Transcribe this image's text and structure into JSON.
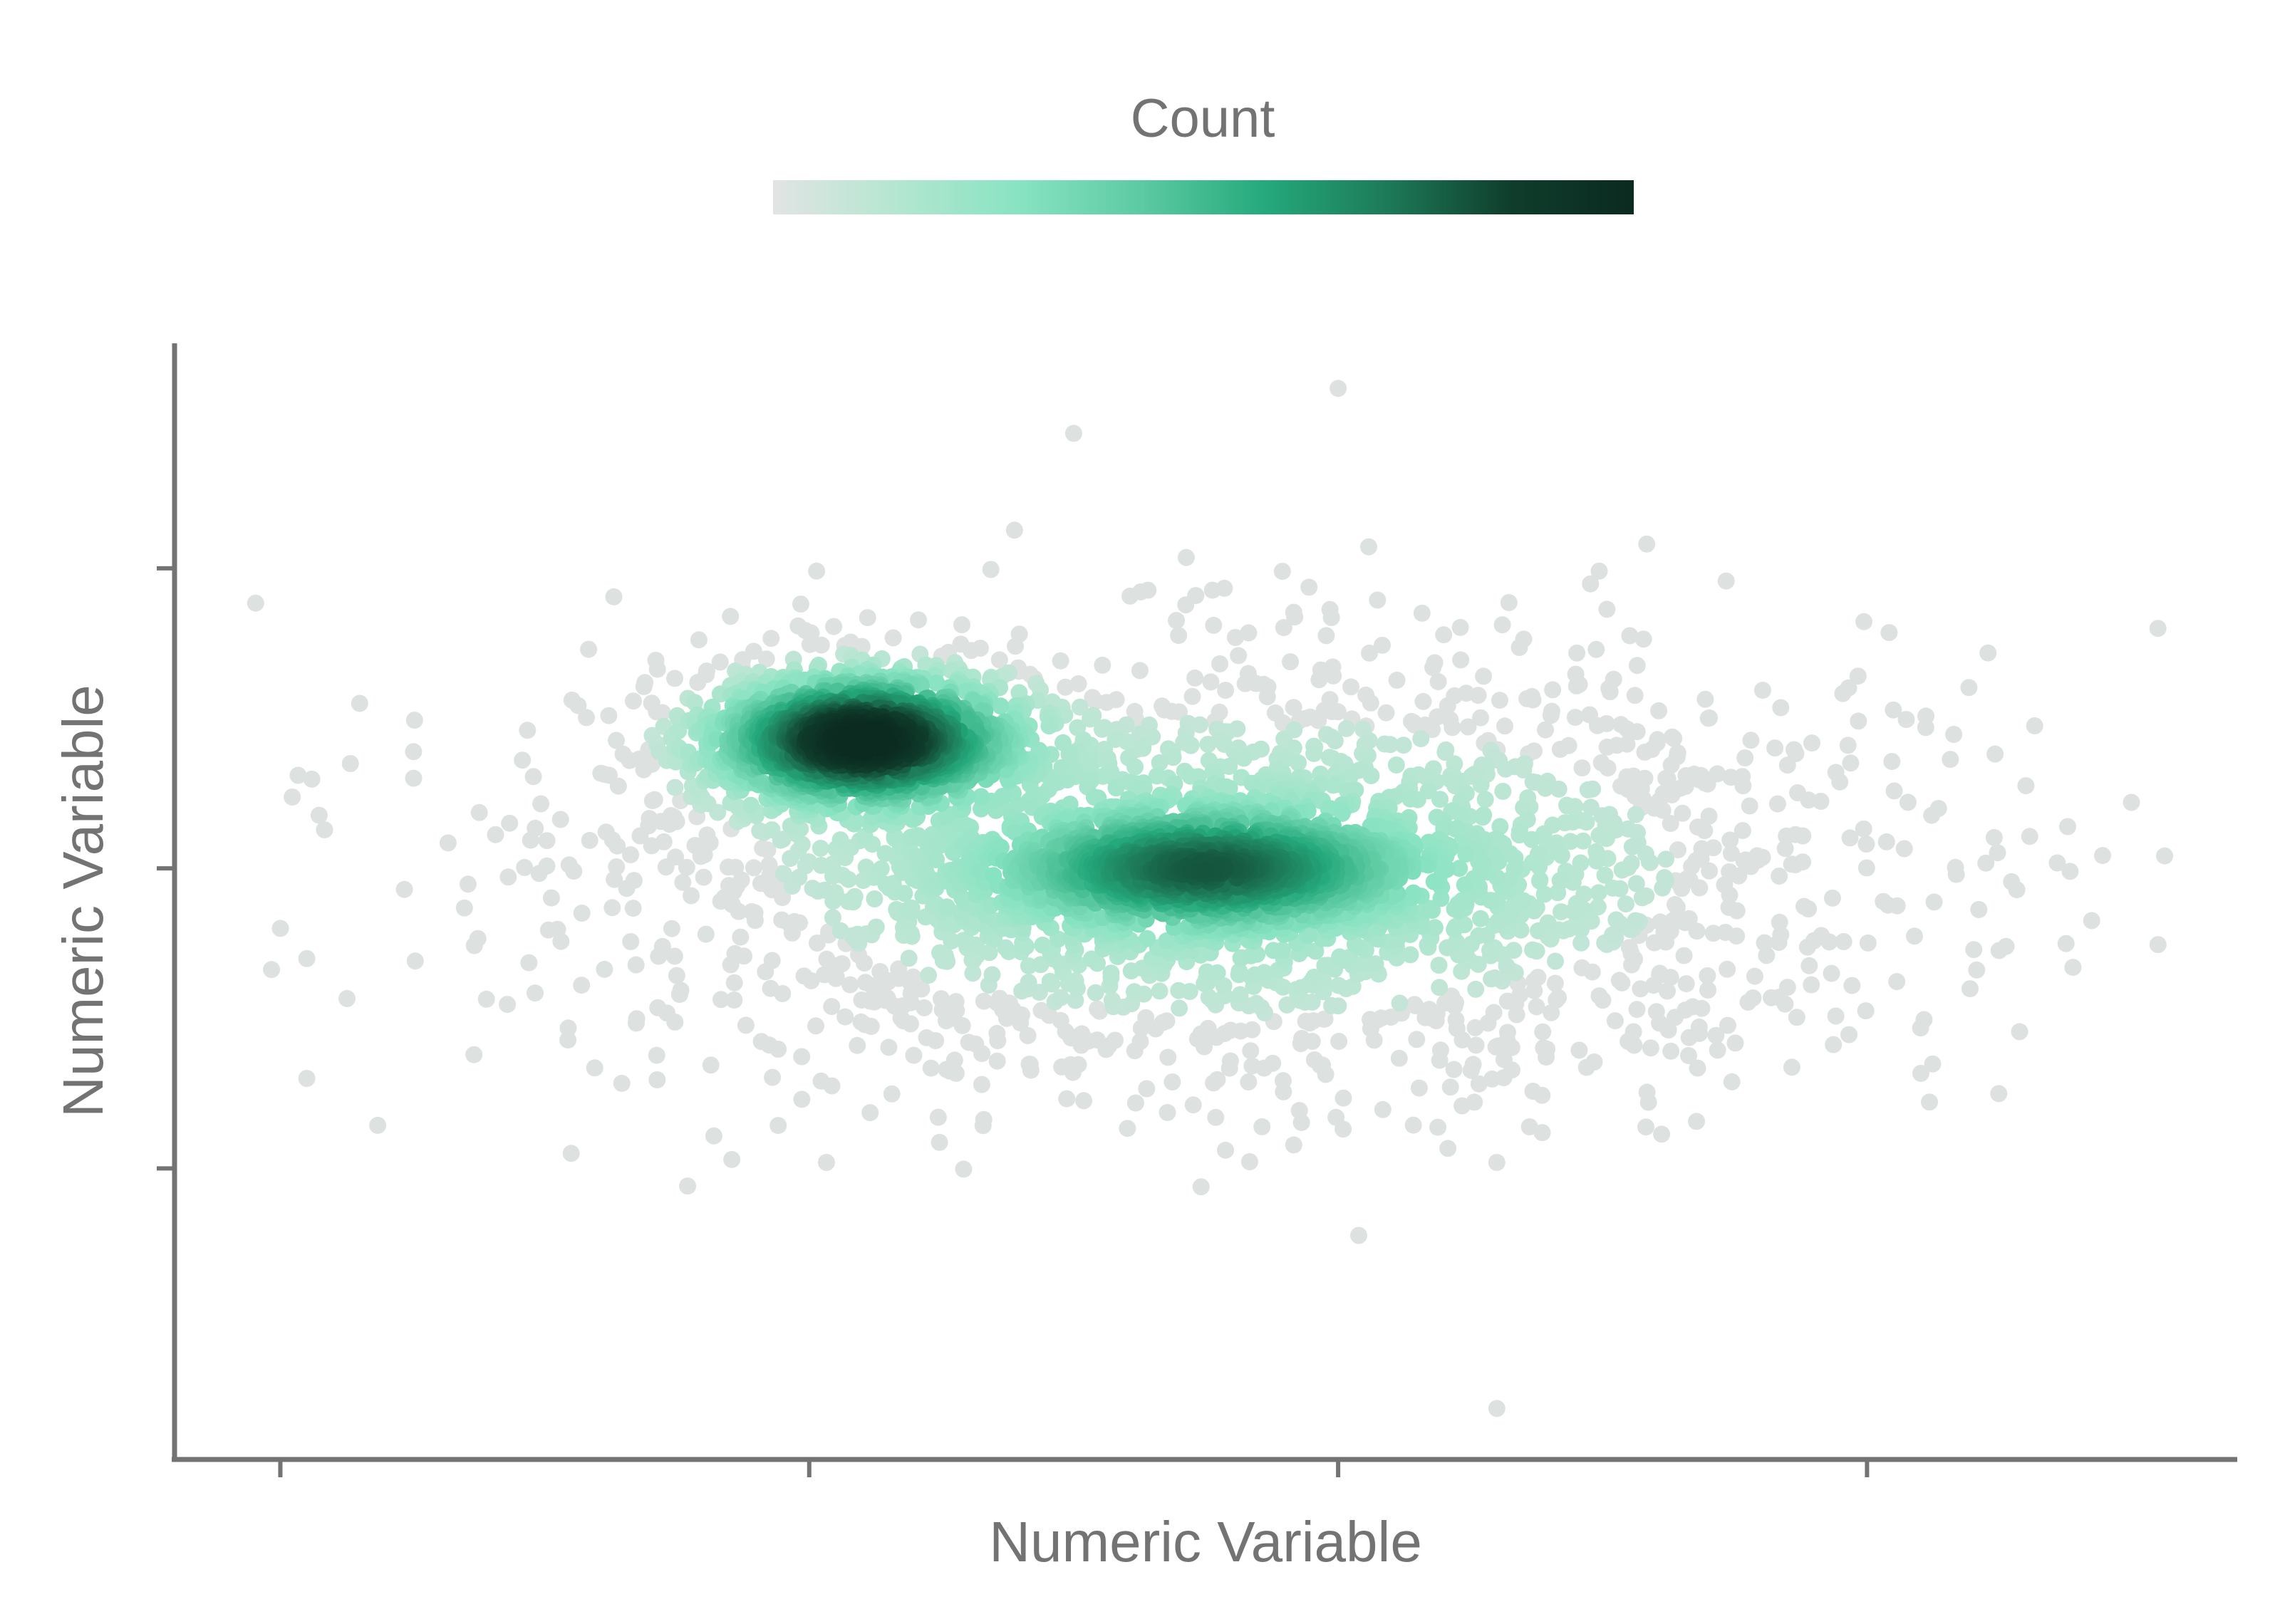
{
  "chart_data": {
    "type": "scatter",
    "title": "",
    "xlabel": "Numeric Variable",
    "ylabel": "Numeric Variable",
    "x_tick_labels": [],
    "y_tick_labels": [],
    "xlim": [
      -0.2,
      3.7
    ],
    "ylim": [
      -0.97,
      2.75
    ],
    "grid": false,
    "legend": {
      "title": "Count",
      "position": "top",
      "colorscale": [
        "#e2e4e3",
        "#b4e6d1",
        "#88e3c2",
        "#5ccaa2",
        "#25a97c",
        "#1d7a58",
        "#0f3d2c",
        "#0b2a20"
      ]
    },
    "point_color": "#dde1df",
    "n_points": 4900,
    "clusters": [
      {
        "name": "",
        "n": 1500,
        "center": [
          1.1,
          1.43
        ],
        "sd": [
          0.16,
          0.12
        ],
        "peak_count_level": 1.0
      },
      {
        "name": "",
        "n": 1100,
        "center": [
          1.75,
          1.0
        ],
        "sd": [
          0.22,
          0.11
        ],
        "peak_count_level": 0.62
      },
      {
        "name": "",
        "n": 2300,
        "center": [
          1.8,
          1.0
        ],
        "sd": [
          0.62,
          0.36
        ],
        "peak_count_level": 0.15
      }
    ],
    "outliers": [
      [
        0.0,
        0.8
      ],
      [
        0.05,
        0.3
      ],
      [
        0.15,
        1.55
      ],
      [
        2.3,
        -0.8
      ],
      [
        3.5,
        1.22
      ],
      [
        2.3,
        0.02
      ],
      [
        3.55,
        1.8
      ],
      [
        0.55,
        0.05
      ],
      [
        2.0,
        2.6
      ],
      [
        1.5,
        2.45
      ]
    ]
  }
}
